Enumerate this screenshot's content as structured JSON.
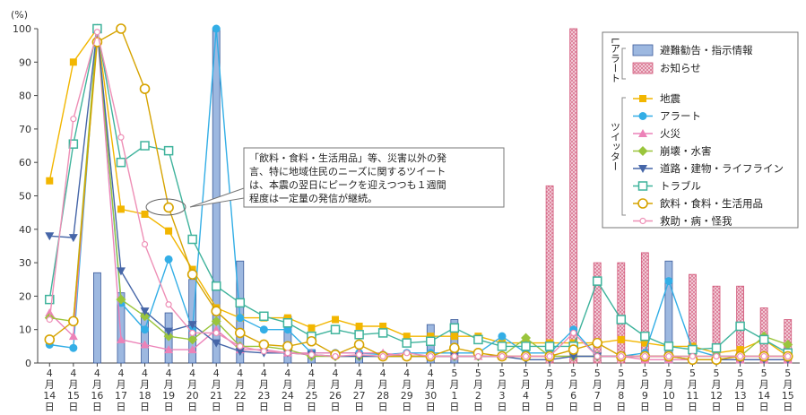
{
  "chart_data": {
    "type": "bar+line",
    "y_unit": "(%)",
    "ylim": [
      0,
      100
    ],
    "yticks": [
      0,
      10,
      20,
      30,
      40,
      50,
      60,
      70,
      80,
      90,
      100
    ],
    "grid": false,
    "categories": [
      [
        "4",
        "月",
        "14",
        "日"
      ],
      [
        "4",
        "月",
        "15",
        "日"
      ],
      [
        "4",
        "月",
        "16",
        "日"
      ],
      [
        "4",
        "月",
        "17",
        "日"
      ],
      [
        "4",
        "月",
        "18",
        "日"
      ],
      [
        "4",
        "月",
        "19",
        "日"
      ],
      [
        "4",
        "月",
        "20",
        "日"
      ],
      [
        "4",
        "月",
        "21",
        "日"
      ],
      [
        "4",
        "月",
        "22",
        "日"
      ],
      [
        "4",
        "月",
        "23",
        "日"
      ],
      [
        "4",
        "月",
        "24",
        "日"
      ],
      [
        "4",
        "月",
        "25",
        "日"
      ],
      [
        "4",
        "月",
        "26",
        "日"
      ],
      [
        "4",
        "月",
        "27",
        "日"
      ],
      [
        "4",
        "月",
        "28",
        "日"
      ],
      [
        "4",
        "月",
        "29",
        "日"
      ],
      [
        "4",
        "月",
        "30",
        "日"
      ],
      [
        "5",
        "月",
        "1",
        "日"
      ],
      [
        "5",
        "月",
        "2",
        "日"
      ],
      [
        "5",
        "月",
        "3",
        "日"
      ],
      [
        "5",
        "月",
        "4",
        "日"
      ],
      [
        "5",
        "月",
        "5",
        "日"
      ],
      [
        "5",
        "月",
        "6",
        "日"
      ],
      [
        "5",
        "月",
        "7",
        "日"
      ],
      [
        "5",
        "月",
        "8",
        "日"
      ],
      [
        "5",
        "月",
        "9",
        "日"
      ],
      [
        "5",
        "月",
        "10",
        "日"
      ],
      [
        "5",
        "月",
        "11",
        "日"
      ],
      [
        "5",
        "月",
        "12",
        "日"
      ],
      [
        "5",
        "月",
        "13",
        "日"
      ],
      [
        "5",
        "月",
        "14",
        "日"
      ],
      [
        "5",
        "月",
        "15",
        "日"
      ]
    ],
    "legend_position": "top-right",
    "legend_groups": [
      {
        "label": "Lアラート",
        "series": [
          "避難勧告・指示情報",
          "お知らせ"
        ]
      },
      {
        "label": "ツイッター",
        "series": [
          "地震",
          "アラート",
          "火災",
          "崩壊・水害",
          "道路・建物・ライフライン",
          "トラブル",
          "飲料・食料・生活用品",
          "救助・病・怪我"
        ]
      }
    ],
    "bar_series": [
      {
        "name": "避難勧告・指示情報",
        "color": "#9db8e0",
        "stroke": "#3a5a9a",
        "values": [
          0,
          0,
          27,
          21,
          15,
          15,
          25,
          100,
          30.5,
          0,
          14,
          4,
          0,
          3,
          0,
          0,
          11.5,
          13,
          0,
          0,
          0,
          0,
          0,
          11.5,
          0,
          0,
          30.5,
          11,
          0,
          0,
          0,
          0
        ]
      },
      {
        "name": "お知らせ",
        "color": "#f3d2dc",
        "stroke": "#d2587a",
        "values": [
          0,
          0,
          0,
          0,
          0,
          0,
          0,
          0,
          0,
          0,
          0,
          0,
          0,
          0,
          0,
          0,
          0,
          0,
          0,
          0,
          0,
          53,
          100,
          30,
          30,
          33,
          0,
          26.5,
          23,
          23,
          16.5,
          13
        ]
      }
    ],
    "line_series": [
      {
        "name": "地震",
        "color": "#f2b600",
        "marker": "square",
        "values": [
          54.5,
          90,
          100,
          46,
          44.5,
          39.5,
          28,
          16.5,
          13.5,
          13.5,
          13.5,
          10.5,
          13,
          11,
          11,
          8,
          8,
          8,
          8,
          6,
          6,
          6,
          6,
          6,
          7,
          6,
          5,
          5,
          3,
          4,
          7,
          2
        ]
      },
      {
        "name": "アラート",
        "color": "#33aee6",
        "marker": "circle",
        "values": [
          5.5,
          4.5,
          100,
          18,
          10,
          31,
          10,
          100,
          13.5,
          10,
          10,
          3,
          3,
          3,
          2.5,
          3,
          3,
          3,
          3,
          8,
          3,
          3,
          10,
          2,
          2,
          3,
          24.5,
          4,
          2,
          2,
          2,
          2
        ]
      },
      {
        "name": "火災",
        "color": "#ec82b8",
        "marker": "triangle-up",
        "values": [
          15,
          8,
          100,
          7,
          5.5,
          4,
          4,
          10,
          4,
          4,
          3,
          3,
          3,
          3,
          3,
          2,
          2,
          2,
          2,
          2,
          2,
          2,
          2,
          2,
          2,
          1,
          1,
          1,
          1,
          1,
          1,
          1
        ]
      },
      {
        "name": "崩壊・水害",
        "color": "#9ac53c",
        "marker": "diamond",
        "values": [
          13.5,
          12.5,
          100,
          19,
          14,
          8,
          7,
          12.5,
          5,
          5,
          4,
          2,
          2,
          2,
          2,
          2,
          2,
          2,
          2,
          2,
          7.5,
          2,
          2,
          2,
          2,
          2,
          2,
          2,
          2,
          2,
          8,
          5.5
        ]
      },
      {
        "name": "道路・建物・ライフライン",
        "color": "#4666a8",
        "marker": "triangle-down",
        "values": [
          38,
          37.5,
          100,
          27.5,
          15.5,
          9.5,
          11.5,
          6,
          3.5,
          3,
          3,
          2.5,
          2,
          2,
          2,
          2,
          2,
          2,
          2,
          2,
          1,
          1,
          2,
          2,
          2,
          2,
          2,
          1,
          1,
          1,
          1,
          1
        ]
      },
      {
        "name": "トラブル",
        "color": "#3fb39c",
        "marker": "square-open",
        "values": [
          19,
          65.5,
          100,
          60,
          65,
          63.5,
          37,
          23,
          18,
          14,
          12,
          8,
          10,
          8.5,
          9,
          6,
          6.5,
          10.5,
          7,
          5,
          5,
          5,
          5,
          24.5,
          13,
          8,
          5,
          4,
          4.5,
          11,
          7,
          3
        ]
      },
      {
        "name": "飲料・食料・生活用品",
        "color": "#d6a300",
        "marker": "circle-open",
        "values": [
          7,
          12.5,
          96,
          100,
          82,
          46.5,
          26.5,
          15.5,
          9,
          5.5,
          5,
          6.5,
          2.5,
          5.5,
          2,
          2,
          2,
          4.5,
          3,
          2,
          2,
          2,
          4,
          6,
          2,
          2,
          2,
          1,
          1,
          2,
          2,
          2
        ]
      },
      {
        "name": "救助・病・怪我",
        "color": "#ee8fb6",
        "marker": "circle-open-small",
        "values": [
          13,
          73,
          99,
          67.5,
          35.5,
          17.5,
          9,
          9,
          5,
          3.5,
          3,
          2.5,
          2,
          2.5,
          2,
          3,
          2,
          2,
          2,
          2,
          2,
          2,
          9,
          2,
          2,
          2,
          2,
          2,
          2,
          2,
          2,
          2
        ]
      }
    ],
    "annotation": {
      "lines": [
        "「飲料・食料・生活用品」等、災害以外の発",
        "言、特に地域住民のニーズに関するツイート",
        "は、本震の翌日にピークを迎えつつも１週間",
        "程度は一定量の発信が継続。"
      ]
    }
  }
}
